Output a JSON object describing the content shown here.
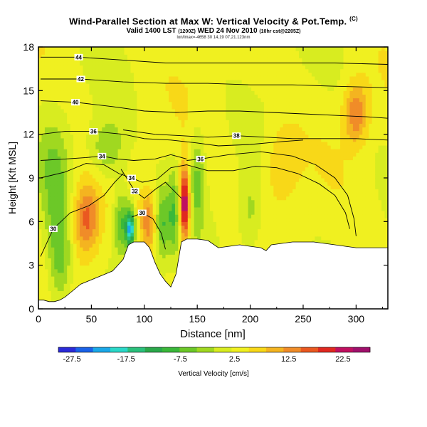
{
  "header": {
    "title": "Wind-Parallel Section at Max W: Vertical Velocity & Pot.Temp.",
    "copyright": "(C)",
    "valid_prefix": "Valid 1400 LST",
    "valid_utc": "(1200Z)",
    "valid_date": "WED 24 Nov 2010",
    "run_info": "(10hr cst@2205Z)",
    "subline": "lon/lmax=-4658 30 14,19 07,21.123nm"
  },
  "chart_data": {
    "type": "heatmap",
    "title": "Wind-Parallel Section at Max W: Vertical Velocity & Pot.Temp.",
    "xlabel": "Distance [nm]",
    "ylabel": "Height [Kft MSL]",
    "xlim": [
      0,
      330
    ],
    "ylim": [
      0,
      18
    ],
    "x_ticks": [
      0,
      50,
      100,
      150,
      200,
      250,
      300
    ],
    "y_ticks": [
      0,
      3,
      6,
      9,
      12,
      15,
      18
    ],
    "colorbar": {
      "label": "Vertical Velocity [cm/s]",
      "tick_labels": [
        "-27.5",
        "-17.5",
        "-7.5",
        "2.5",
        "12.5",
        "22.5"
      ],
      "tick_values": [
        -27.5,
        -17.5,
        -7.5,
        2.5,
        12.5,
        22.5
      ],
      "range": [
        -30,
        27.5
      ],
      "colors": [
        "#2a2ad8",
        "#1a62e8",
        "#1aa8e8",
        "#2ad8c8",
        "#2ac07c",
        "#2aa84a",
        "#3ab83a",
        "#6cc828",
        "#a0d820",
        "#d8ec20",
        "#f0f020",
        "#f8d818",
        "#f4b420",
        "#f08c28",
        "#ea5820",
        "#e02820",
        "#c01060",
        "#a0106c"
      ]
    },
    "theta_contours": [
      {
        "value": 30,
        "label": "30",
        "label_x": 14,
        "label_y": 5.5,
        "points": [
          [
            2,
            3.6
          ],
          [
            14,
            5.5
          ],
          [
            30,
            6.6
          ],
          [
            48,
            7.1
          ],
          [
            62,
            7.8
          ],
          [
            72,
            8.7
          ],
          [
            80,
            9.3
          ]
        ]
      },
      {
        "value": 32,
        "label": "32",
        "label_x": 91,
        "label_y": 8.1,
        "points": [
          [
            78,
            9.6
          ],
          [
            91,
            8.1
          ],
          [
            100,
            7.6
          ],
          [
            110,
            8.2
          ],
          [
            120,
            8.7
          ],
          [
            135,
            7.6
          ]
        ]
      },
      {
        "value": 30,
        "label": "30",
        "label_x": 98,
        "label_y": 6.6,
        "points": [
          [
            88,
            6.3
          ],
          [
            98,
            6.6
          ],
          [
            108,
            6.2
          ],
          [
            116,
            5.2
          ],
          [
            120,
            4.1
          ]
        ]
      },
      {
        "value": 34,
        "label": "34",
        "label_x": 88,
        "label_y": 9.0,
        "points": [
          [
            2,
            9.0
          ],
          [
            25,
            9.4
          ],
          [
            45,
            10.0
          ],
          [
            62,
            9.9
          ],
          [
            76,
            9.3
          ],
          [
            88,
            9.0
          ],
          [
            98,
            8.7
          ],
          [
            112,
            8.9
          ],
          [
            125,
            9.7
          ],
          [
            140,
            9.9
          ],
          [
            160,
            9.5
          ],
          [
            184,
            9.5
          ],
          [
            205,
            9.8
          ],
          [
            225,
            9.7
          ],
          [
            245,
            9.3
          ],
          [
            265,
            8.6
          ],
          [
            280,
            7.8
          ],
          [
            290,
            6.6
          ],
          [
            294,
            5.5
          ]
        ]
      },
      {
        "value": 34,
        "label": "34",
        "label_x": 60,
        "label_y": 10.5,
        "points": [
          [
            2,
            10.2
          ],
          [
            25,
            10.3
          ],
          [
            45,
            10.4
          ],
          [
            60,
            10.5
          ],
          [
            75,
            10.3
          ],
          [
            90,
            10.2
          ],
          [
            110,
            10.3
          ],
          [
            125,
            10.6
          ],
          [
            140,
            10.3
          ]
        ]
      },
      {
        "value": 36,
        "label": "36",
        "label_x": 153,
        "label_y": 10.3,
        "points": [
          [
            140,
            10.2
          ],
          [
            153,
            10.3
          ],
          [
            180,
            10.6
          ],
          [
            210,
            10.8
          ],
          [
            240,
            10.5
          ],
          [
            262,
            9.9
          ],
          [
            280,
            9.0
          ],
          [
            292,
            7.8
          ],
          [
            298,
            6.2
          ],
          [
            300,
            5.0
          ]
        ]
      },
      {
        "value": 36,
        "label": "36",
        "label_x": 52,
        "label_y": 12.2,
        "points": [
          [
            2,
            12.0
          ],
          [
            25,
            12.2
          ],
          [
            52,
            12.2
          ],
          [
            80,
            12.0
          ],
          [
            100,
            11.7
          ],
          [
            125,
            11.6
          ],
          [
            150,
            11.4
          ],
          [
            170,
            11.2
          ],
          [
            200,
            11.3
          ],
          [
            230,
            11.5
          ],
          [
            250,
            11.6
          ]
        ]
      },
      {
        "value": 38,
        "label": "38",
        "label_x": 187,
        "label_y": 11.9,
        "points": [
          [
            80,
            12.3
          ],
          [
            110,
            12.0
          ],
          [
            135,
            11.9
          ],
          [
            160,
            11.8
          ],
          [
            187,
            11.9
          ],
          [
            215,
            11.8
          ],
          [
            240,
            11.7
          ],
          [
            270,
            11.7
          ],
          [
            300,
            11.7
          ],
          [
            330,
            11.6
          ]
        ]
      },
      {
        "value": 40,
        "label": "40",
        "label_x": 35,
        "label_y": 14.2,
        "points": [
          [
            2,
            14.3
          ],
          [
            35,
            14.2
          ],
          [
            70,
            13.9
          ],
          [
            100,
            13.6
          ],
          [
            130,
            13.5
          ],
          [
            160,
            13.6
          ],
          [
            190,
            13.6
          ],
          [
            220,
            13.5
          ],
          [
            250,
            13.4
          ],
          [
            280,
            13.3
          ],
          [
            310,
            13.2
          ],
          [
            330,
            13.1
          ]
        ]
      },
      {
        "value": 42,
        "label": "42",
        "label_x": 40,
        "label_y": 15.8,
        "points": [
          [
            2,
            15.8
          ],
          [
            40,
            15.8
          ],
          [
            80,
            15.6
          ],
          [
            120,
            15.5
          ],
          [
            160,
            15.5
          ],
          [
            200,
            15.4
          ],
          [
            240,
            15.4
          ],
          [
            280,
            15.3
          ],
          [
            330,
            15.2
          ]
        ]
      },
      {
        "value": 44,
        "label": "44",
        "label_x": 38,
        "label_y": 17.3,
        "points": [
          [
            2,
            17.3
          ],
          [
            38,
            17.3
          ],
          [
            80,
            17.1
          ],
          [
            120,
            16.9
          ],
          [
            160,
            16.9
          ],
          [
            200,
            16.9
          ],
          [
            240,
            16.9
          ],
          [
            280,
            16.9
          ],
          [
            330,
            16.8
          ]
        ]
      }
    ],
    "terrain_kft": [
      [
        0,
        0.6
      ],
      [
        5,
        0.6
      ],
      [
        10,
        0.5
      ],
      [
        15,
        0.5
      ],
      [
        20,
        0.6
      ],
      [
        25,
        0.8
      ],
      [
        30,
        1.1
      ],
      [
        40,
        1.7
      ],
      [
        50,
        2.0
      ],
      [
        60,
        2.3
      ],
      [
        70,
        2.6
      ],
      [
        80,
        3.4
      ],
      [
        85,
        4.4
      ],
      [
        90,
        4.6
      ],
      [
        100,
        4.6
      ],
      [
        105,
        4.2
      ],
      [
        110,
        3.2
      ],
      [
        115,
        2.4
      ],
      [
        120,
        1.9
      ],
      [
        125,
        1.5
      ],
      [
        130,
        2.4
      ],
      [
        135,
        4.6
      ],
      [
        140,
        4.8
      ],
      [
        150,
        4.8
      ],
      [
        160,
        4.7
      ],
      [
        170,
        4.2
      ],
      [
        180,
        4.3
      ],
      [
        190,
        4.4
      ],
      [
        200,
        4.3
      ],
      [
        210,
        4.2
      ],
      [
        215,
        4.0
      ],
      [
        220,
        4.4
      ],
      [
        230,
        4.5
      ],
      [
        240,
        4.6
      ],
      [
        250,
        4.6
      ],
      [
        260,
        4.6
      ],
      [
        270,
        4.5
      ],
      [
        280,
        4.4
      ],
      [
        290,
        4.3
      ],
      [
        300,
        4.2
      ],
      [
        310,
        4.2
      ],
      [
        320,
        4.2
      ],
      [
        330,
        4.2
      ]
    ],
    "w_field_features": [
      {
        "x": 45,
        "z": 6.2,
        "w": 13,
        "sx": 9,
        "sz": 1.8
      },
      {
        "x": 79,
        "z": 6.0,
        "w": -12,
        "sx": 6,
        "sz": 1.6
      },
      {
        "x": 87,
        "z": 5.5,
        "w": -22,
        "sx": 3,
        "sz": 0.9
      },
      {
        "x": 104,
        "z": 6.0,
        "w": 10,
        "sx": 5,
        "sz": 1.4
      },
      {
        "x": 117,
        "z": 5.8,
        "w": -10,
        "sx": 5,
        "sz": 1.8
      },
      {
        "x": 128,
        "z": 6.5,
        "w": -9,
        "sx": 4,
        "sz": 2.0
      },
      {
        "x": 138,
        "z": 7.2,
        "w": 24,
        "sx": 3.5,
        "sz": 1.8
      },
      {
        "x": 150,
        "z": 9.0,
        "w": -8,
        "sx": 5,
        "sz": 2.5
      },
      {
        "x": 65,
        "z": 11.0,
        "w": -8,
        "sx": 12,
        "sz": 1.5
      },
      {
        "x": 300,
        "z": 13.5,
        "w": 12,
        "sx": 8,
        "sz": 1.5
      },
      {
        "x": 230,
        "z": 10.0,
        "w": 6,
        "sx": 12,
        "sz": 2.0
      },
      {
        "x": 20,
        "z": 3.5,
        "w": -10,
        "sx": 8,
        "sz": 2.5
      },
      {
        "x": 200,
        "z": 6.5,
        "w": -6,
        "sx": 8,
        "sz": 2.0
      },
      {
        "x": 15,
        "z": 9.0,
        "w": -7,
        "sx": 10,
        "sz": 3.0
      }
    ]
  }
}
